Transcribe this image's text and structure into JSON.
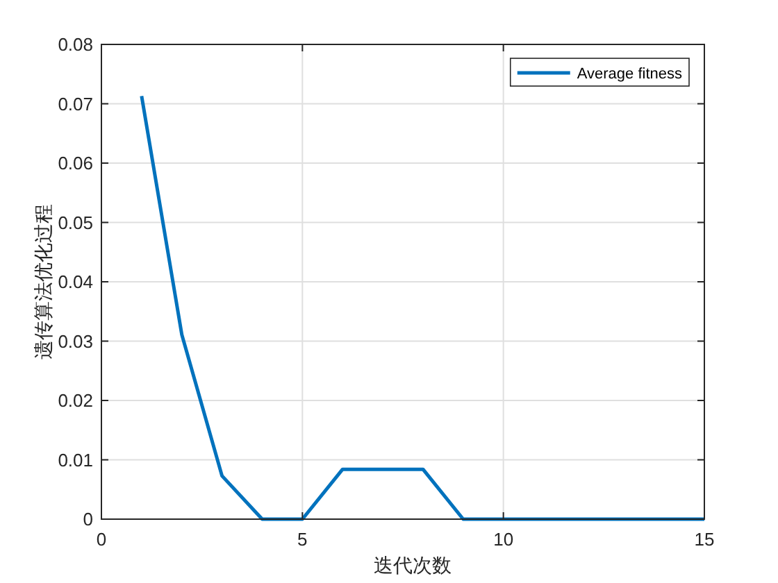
{
  "chart_data": {
    "type": "line",
    "xlabel": "迭代次数",
    "ylabel": "遗传算法优化过程",
    "x": [
      1,
      2,
      3,
      4,
      5,
      6,
      7,
      8,
      9,
      10,
      11,
      12,
      13,
      14,
      15
    ],
    "series": [
      {
        "name": "Average fitness",
        "color": "#0072bd",
        "values": [
          0.0713,
          0.0311,
          0.0073,
          0,
          0,
          0.0084,
          0.0084,
          0.0084,
          0,
          0,
          0,
          0,
          0,
          0,
          0
        ]
      }
    ],
    "xlim": [
      0,
      15
    ],
    "xticks": [
      0,
      5,
      10,
      15
    ],
    "ylim": [
      0,
      0.08
    ],
    "yticks": [
      0,
      0.01,
      0.02,
      0.03,
      0.04,
      0.05,
      0.06,
      0.07,
      0.08
    ],
    "grid": true,
    "legend": "top right",
    "line_style": "solid"
  }
}
